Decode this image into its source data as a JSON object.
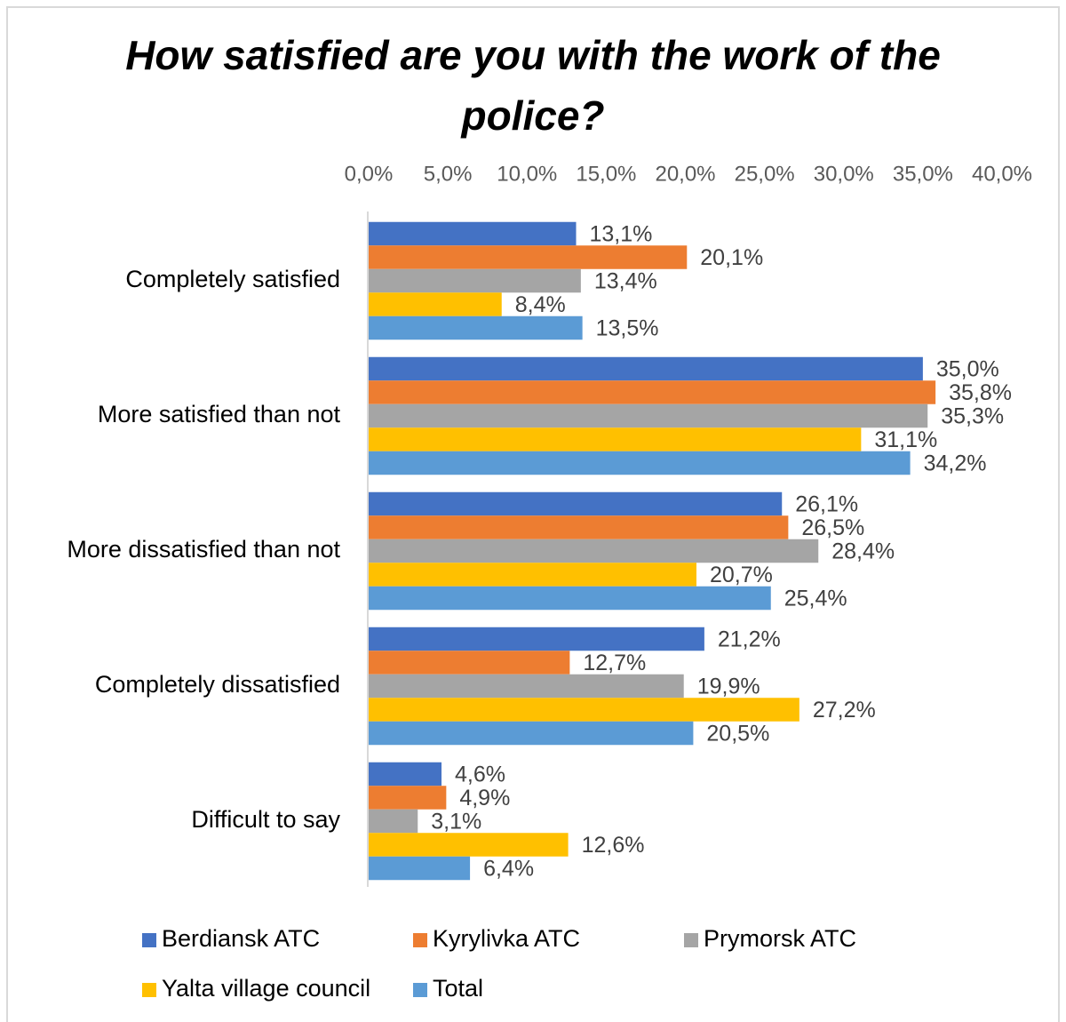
{
  "chart_data": {
    "type": "bar",
    "orientation": "horizontal",
    "title": "How satisfied are you with the work of the police?",
    "categories": [
      "Completely satisfied",
      "More satisfied than not",
      "More dissatisfied than not",
      "Completely dissatisfied",
      "Difficult to say"
    ],
    "series": [
      {
        "name": "Berdiansk ATC",
        "color": "#4472c4",
        "values": [
          13.1,
          35.0,
          26.1,
          21.2,
          4.6
        ],
        "value_labels": [
          "13,1%",
          "35,0%",
          "26,1%",
          "21,2%",
          "4,6%"
        ]
      },
      {
        "name": "Kyrylivka ATC",
        "color": "#ed7d31",
        "values": [
          20.1,
          35.8,
          26.5,
          12.7,
          4.9
        ],
        "value_labels": [
          "20,1%",
          "35,8%",
          "26,5%",
          "12,7%",
          "4,9%"
        ]
      },
      {
        "name": "Prymorsk ATC",
        "color": "#a5a5a5",
        "values": [
          13.4,
          35.3,
          28.4,
          19.9,
          3.1
        ],
        "value_labels": [
          "13,4%",
          "35,3%",
          "28,4%",
          "19,9%",
          "3,1%"
        ]
      },
      {
        "name": "Yalta village council",
        "color": "#ffc000",
        "values": [
          8.4,
          31.1,
          20.7,
          27.2,
          12.6
        ],
        "value_labels": [
          "8,4%",
          "31,1%",
          "20,7%",
          "27,2%",
          "12,6%"
        ]
      },
      {
        "name": "Total",
        "color": "#5b9bd5",
        "values": [
          13.5,
          34.2,
          25.4,
          20.5,
          6.4
        ],
        "value_labels": [
          "13,5%",
          "34,2%",
          "25,4%",
          "20,5%",
          "6,4%"
        ]
      }
    ],
    "xlim": [
      0,
      40
    ],
    "xticks": [
      {
        "value": 0,
        "label": "0,0%"
      },
      {
        "value": 5,
        "label": "5,0%"
      },
      {
        "value": 10,
        "label": "10,0%"
      },
      {
        "value": 15,
        "label": "15,0%"
      },
      {
        "value": 20,
        "label": "20,0%"
      },
      {
        "value": 25,
        "label": "25,0%"
      },
      {
        "value": 30,
        "label": "30,0%"
      },
      {
        "value": 35,
        "label": "35,0%"
      },
      {
        "value": 40,
        "label": "40,0%"
      }
    ],
    "legend": "bottom"
  }
}
